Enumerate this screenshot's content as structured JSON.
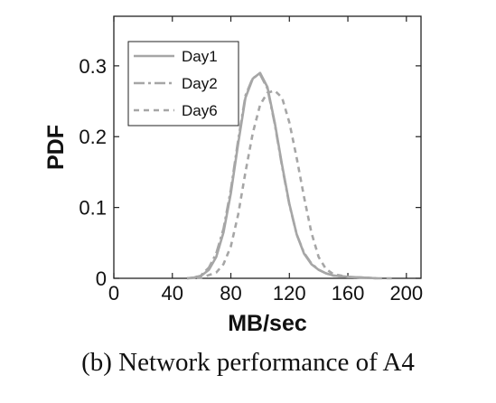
{
  "caption": "(b) Network performance of A4",
  "chart_data": {
    "type": "line",
    "xlabel": "MB/sec",
    "ylabel": "PDF",
    "xlim": [
      0,
      210
    ],
    "ylim": [
      0,
      0.37
    ],
    "x_ticks": [
      0,
      40,
      80,
      120,
      160,
      200
    ],
    "x_tick_labels": [
      "0",
      "40",
      "80",
      "120",
      "160",
      "200"
    ],
    "y_ticks": [
      0,
      0.1,
      0.2,
      0.3
    ],
    "y_tick_labels": [
      "0",
      "0.1",
      "0.2",
      "0.3"
    ],
    "grid": false,
    "legend_position": "top-left",
    "series": [
      {
        "name": "Day1",
        "style": "solid",
        "color": "#a6a6a6",
        "x": [
          50,
          55,
          60,
          65,
          70,
          75,
          80,
          85,
          90,
          95,
          100,
          105,
          110,
          115,
          120,
          125,
          130,
          135,
          140,
          145,
          150,
          160,
          170,
          180
        ],
        "y": [
          0.0,
          0.001,
          0.004,
          0.012,
          0.03,
          0.065,
          0.12,
          0.19,
          0.255,
          0.282,
          0.29,
          0.27,
          0.22,
          0.16,
          0.105,
          0.062,
          0.035,
          0.02,
          0.012,
          0.007,
          0.004,
          0.002,
          0.001,
          0.0
        ]
      },
      {
        "name": "Day2",
        "style": "dashdot",
        "color": "#a6a6a6",
        "x": [
          50,
          55,
          60,
          65,
          70,
          75,
          80,
          85,
          90,
          95,
          100,
          105,
          110,
          115,
          120,
          125,
          130,
          135,
          140,
          145,
          150,
          160,
          170,
          180
        ],
        "y": [
          0.0,
          0.001,
          0.005,
          0.015,
          0.035,
          0.07,
          0.125,
          0.195,
          0.258,
          0.283,
          0.288,
          0.268,
          0.218,
          0.158,
          0.104,
          0.062,
          0.036,
          0.021,
          0.012,
          0.007,
          0.004,
          0.002,
          0.001,
          0.0
        ]
      },
      {
        "name": "Day6",
        "style": "dashed",
        "color": "#a6a6a6",
        "x": [
          50,
          60,
          70,
          75,
          80,
          85,
          90,
          95,
          100,
          105,
          110,
          115,
          120,
          125,
          130,
          135,
          140,
          145,
          150,
          160,
          170,
          180,
          190
        ],
        "y": [
          0.0,
          0.001,
          0.008,
          0.02,
          0.045,
          0.09,
          0.15,
          0.205,
          0.245,
          0.262,
          0.265,
          0.255,
          0.22,
          0.17,
          0.115,
          0.065,
          0.03,
          0.013,
          0.006,
          0.002,
          0.001,
          0.0,
          0.0
        ]
      }
    ]
  }
}
